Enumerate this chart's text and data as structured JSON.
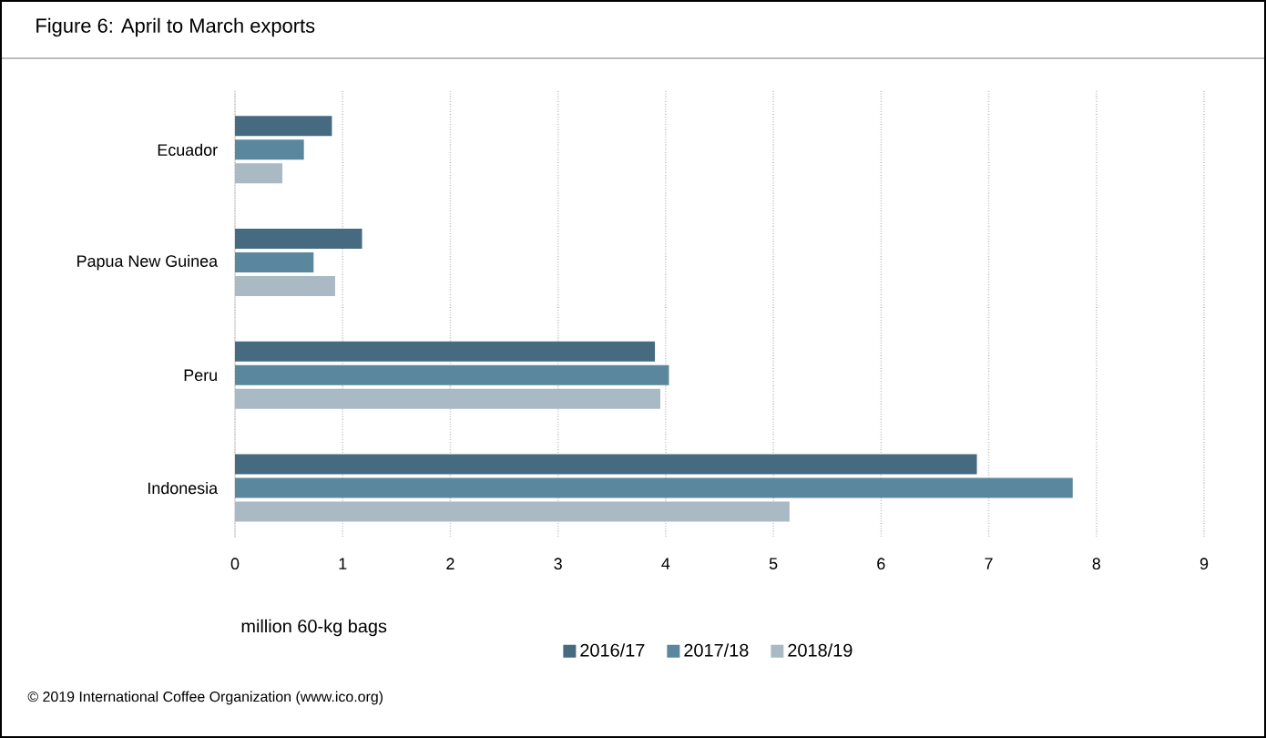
{
  "chart_data": {
    "type": "bar",
    "orientation": "horizontal",
    "title": "Figure 6: April to March exports",
    "xlabel": "million 60-kg bags",
    "categories": [
      "Ecuador",
      "Papua New Guinea",
      "Peru",
      "Indonesia"
    ],
    "series": [
      {
        "name": "2016/17",
        "color": "#466a7f",
        "values": [
          0.9,
          1.18,
          3.9,
          6.89
        ]
      },
      {
        "name": "2017/18",
        "color": "#5b879e",
        "values": [
          0.64,
          0.73,
          4.03,
          7.78
        ]
      },
      {
        "name": "2018/19",
        "color": "#a9bac4",
        "values": [
          0.44,
          0.93,
          3.95,
          5.15
        ]
      }
    ],
    "xlim": [
      0,
      9
    ],
    "xticks": [
      0,
      1,
      2,
      3,
      4,
      5,
      6,
      7,
      8,
      9
    ],
    "grid": "x",
    "legend": "bottom",
    "annotations": [
      "© 2019 International Coffee Organization (www.ico.org)"
    ]
  }
}
